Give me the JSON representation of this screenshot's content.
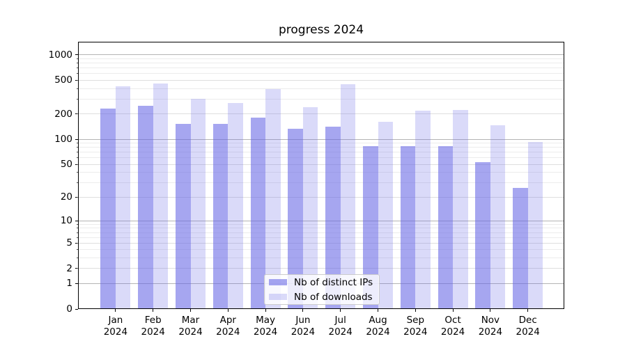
{
  "figure": {
    "title": "progress 2024"
  },
  "chart_data": {
    "type": "bar",
    "title": "progress 2024",
    "xlabel": "",
    "ylabel": "",
    "categories": [
      "Jan 2024",
      "Feb 2024",
      "Mar 2024",
      "Apr 2024",
      "May 2024",
      "Jun 2024",
      "Jul 2024",
      "Aug 2024",
      "Sep 2024",
      "Oct 2024",
      "Nov 2024",
      "Dec 2024"
    ],
    "series": [
      {
        "name": "Nb of distinct IPs",
        "color": "rgba(102,102,230,0.58)",
        "values": [
          232,
          250,
          152,
          151,
          180,
          134,
          140,
          83,
          82,
          83,
          53,
          26
        ]
      },
      {
        "name": "Nb of downloads",
        "color": "rgba(102,102,230,0.24)",
        "values": [
          425,
          456,
          304,
          268,
          394,
          240,
          448,
          160,
          218,
          222,
          146,
          92
        ]
      }
    ],
    "yscale": "log1p",
    "ylim": [
      0,
      1430
    ],
    "y_tick_labels": [
      0,
      1,
      2,
      5,
      10,
      20,
      50,
      100,
      200,
      500,
      1000
    ],
    "y_major_gridlines": [
      1,
      10,
      100,
      1000
    ],
    "y_mid_gridlines": [
      2,
      5,
      20,
      50,
      200,
      500
    ],
    "y_minor_gridlines": [
      3,
      4,
      6,
      7,
      8,
      9,
      30,
      40,
      60,
      70,
      80,
      90,
      300,
      400,
      600,
      700,
      800,
      900
    ],
    "grid": true,
    "legend_location": "lower center"
  },
  "colors": {
    "grid_major": "#b4b4b4",
    "grid_mid": "#dedede",
    "grid_minor": "#ececec"
  }
}
